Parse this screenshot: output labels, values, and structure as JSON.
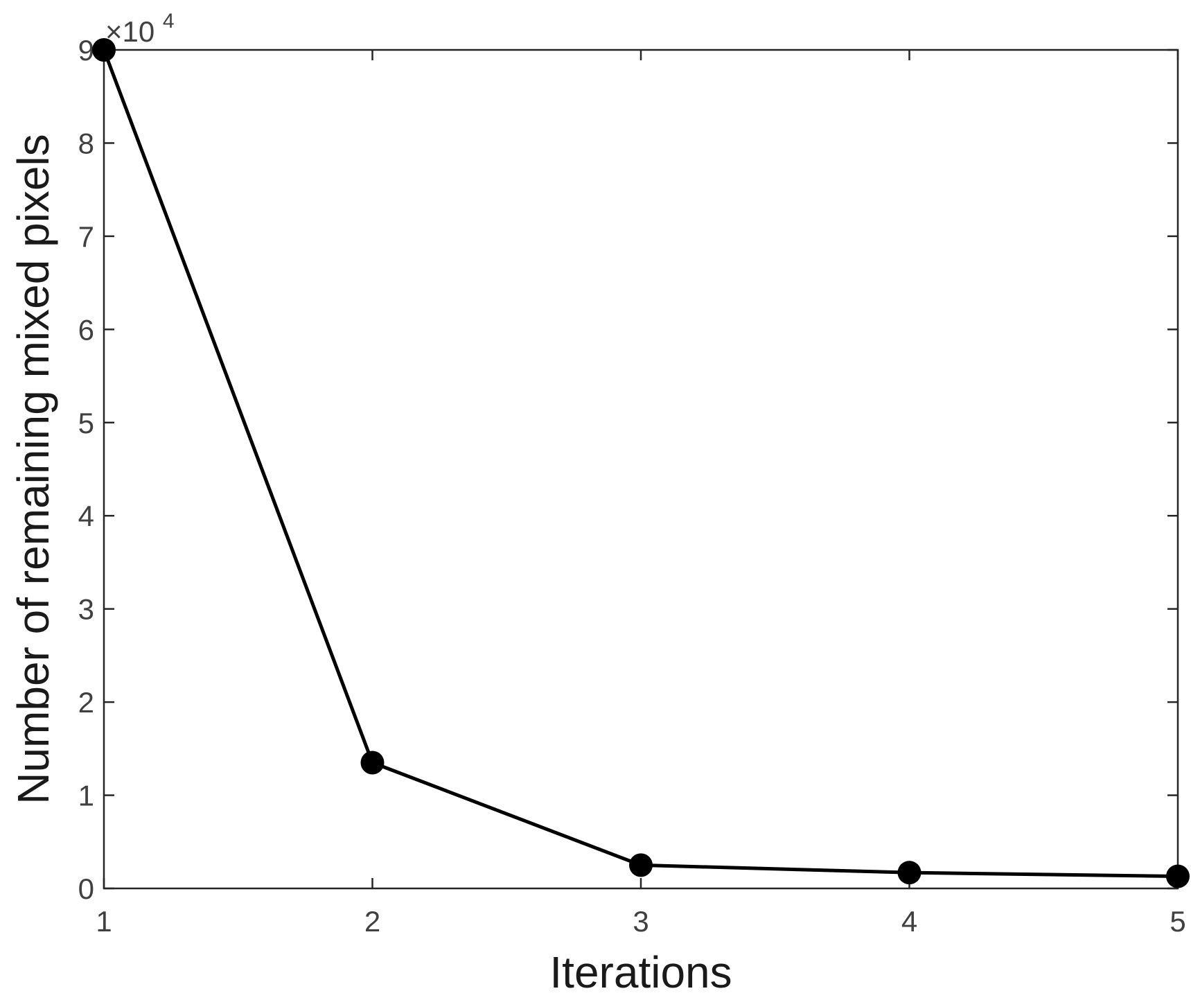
{
  "chart_data": {
    "type": "line",
    "x": [
      1,
      2,
      3,
      4,
      5
    ],
    "series": [
      {
        "values": [
          90000,
          13500,
          2500,
          1700,
          1300
        ]
      }
    ],
    "xlabel": "Iterations",
    "ylabel": "Number of remaining mixed pixels",
    "xlim": [
      1,
      5
    ],
    "ylim": [
      0,
      90000
    ],
    "xticks": [
      "1",
      "2",
      "3",
      "4",
      "5"
    ],
    "yticks": [
      "0",
      "1",
      "2",
      "3",
      "4",
      "5",
      "6",
      "7",
      "8",
      "9"
    ],
    "y_multiplier": {
      "base": "×10",
      "exponent": "4"
    },
    "grid": false,
    "line_color": "#000000",
    "axis_color": "#262626"
  }
}
